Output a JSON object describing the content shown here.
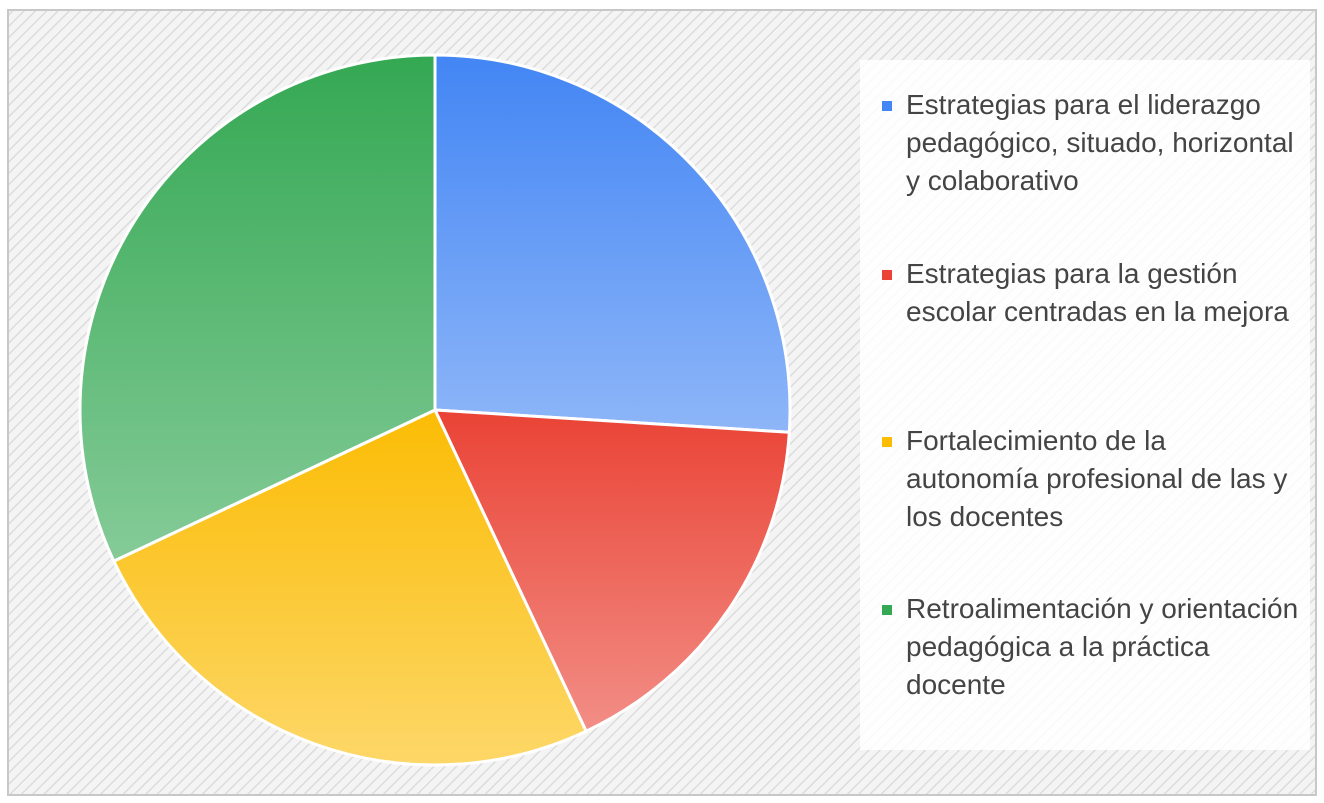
{
  "chart_data": {
    "type": "pie",
    "categories": [
      "Estrategias para el liderazgo pedagógico, situado, horizontal y colaborativo",
      "Estrategias para la gestión escolar centradas en la mejora",
      "Fortalecimiento de la autonomía profesional de las y los docentes",
      "Retroalimentación y orientación pedagógica a la práctica docente"
    ],
    "values": [
      26,
      17,
      25,
      32
    ],
    "colors": [
      "#4285f4",
      "#ea4335",
      "#fbbc04",
      "#34a853"
    ],
    "legend": "right"
  }
}
